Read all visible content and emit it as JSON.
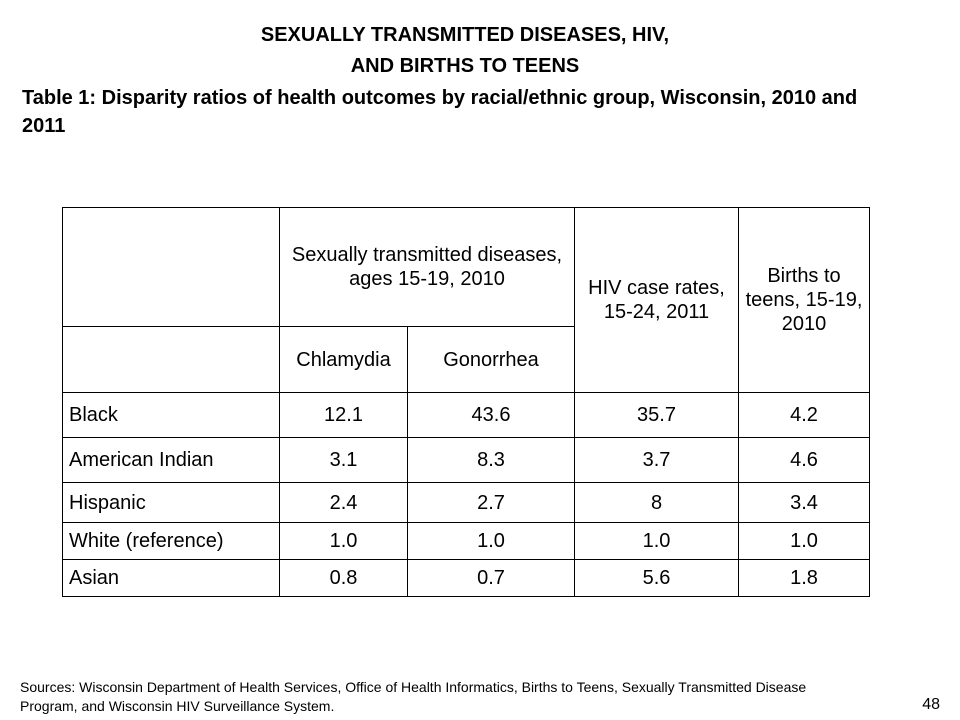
{
  "heading": {
    "line1": "SEXUALLY TRANSMITTED DISEASES, HIV,",
    "line2": "AND BIRTHS TO TEENS"
  },
  "subtitle": "Table 1: Disparity ratios of health outcomes by racial/ethnic group, Wisconsin, 2010 and 2011",
  "table": {
    "headers": {
      "std_group": "Sexually transmitted diseases, ages 15-19, 2010",
      "hiv": "HIV case rates, 15-24, 2011",
      "births": "Births to teens, 15-19, 2010",
      "chlamydia": "Chlamydia",
      "gonorrhea": "Gonorrhea"
    },
    "rows": [
      {
        "group": "Black",
        "chlamydia": "12.1",
        "gonorrhea": "43.6",
        "hiv": "35.7",
        "births": "4.2"
      },
      {
        "group": "American Indian",
        "chlamydia": "3.1",
        "gonorrhea": "8.3",
        "hiv": "3.7",
        "births": "4.6"
      },
      {
        "group": "Hispanic",
        "chlamydia": "2.4",
        "gonorrhea": "2.7",
        "hiv": "8",
        "births": "3.4"
      },
      {
        "group": "White (reference)",
        "chlamydia": "1.0",
        "gonorrhea": "1.0",
        "hiv": "1.0",
        "births": "1.0"
      },
      {
        "group": "Asian",
        "chlamydia": "0.8",
        "gonorrhea": "0.7",
        "hiv": "5.6",
        "births": "1.8"
      }
    ]
  },
  "sources": "Sources: Wisconsin Department of Health Services, Office of Health Informatics, Births to Teens, Sexually Transmitted Disease Program, and Wisconsin HIV Surveillance System.",
  "page_number": "48"
}
